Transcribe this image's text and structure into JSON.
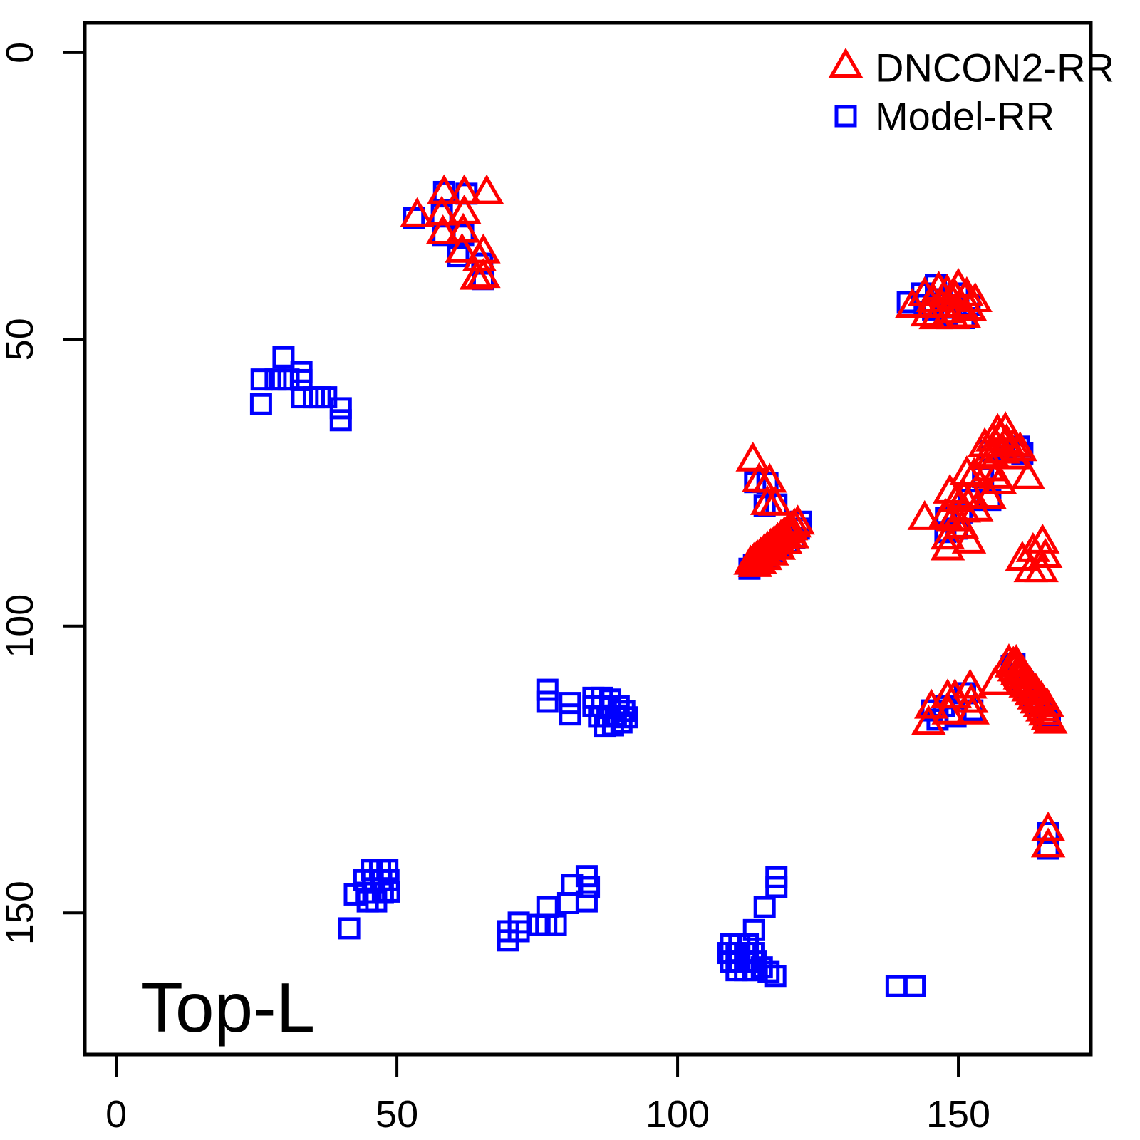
{
  "figure": {
    "background": "#ffffff",
    "frame_color": "#000000"
  },
  "legend": {
    "position": "topright",
    "items": [
      {
        "label": "DNCON2-RR",
        "marker": "triangle-icon",
        "color": "#ff0000"
      },
      {
        "label": "Model-RR",
        "marker": "square-icon",
        "color": "#0000ff"
      }
    ]
  },
  "chart_data": {
    "type": "scatter",
    "title": "",
    "xlabel": "",
    "ylabel": "",
    "annotation": "Top-L",
    "x_ticks": [
      "0",
      "50",
      "100",
      "150"
    ],
    "y_ticks": [
      "0",
      "50",
      "100",
      "150"
    ],
    "x_tick_values": [
      0,
      50,
      100,
      150
    ],
    "y_tick_values": [
      0,
      50,
      100,
      150
    ],
    "xlim": [
      -5.6,
      173.6
    ],
    "ylim": [
      -5.2,
      174.7
    ],
    "y_inverted": true,
    "grid": false,
    "legend_position": "topright",
    "series": [
      {
        "name": "DNCON2-RR",
        "marker": "triangle",
        "color": "#ff0000",
        "points": [
          [
            58.4,
            24.7
          ],
          [
            62.0,
            24.7
          ],
          [
            66.0,
            24.7
          ],
          [
            53.6,
            28.7
          ],
          [
            58.0,
            28.4
          ],
          [
            62.0,
            28.2
          ],
          [
            58.2,
            31.7
          ],
          [
            61.8,
            31.4
          ],
          [
            61.6,
            34.9
          ],
          [
            65.4,
            35.0
          ],
          [
            64.7,
            36.4
          ],
          [
            65.4,
            39.3
          ],
          [
            64.2,
            39.6
          ],
          [
            141.8,
            44.5
          ],
          [
            144.0,
            42.5
          ],
          [
            145.5,
            43.5
          ],
          [
            146.5,
            41.5
          ],
          [
            147.0,
            44.5
          ],
          [
            148.0,
            42.0
          ],
          [
            148.5,
            45.5
          ],
          [
            149.5,
            43.0
          ],
          [
            150.0,
            41.0
          ],
          [
            150.5,
            44.5
          ],
          [
            151.5,
            42.5
          ],
          [
            152.0,
            45.0
          ],
          [
            153.0,
            43.5
          ],
          [
            144.5,
            46.0
          ],
          [
            146.0,
            46.5
          ],
          [
            149.0,
            46.5
          ],
          [
            151.0,
            46.3
          ],
          [
            113.4,
            71.3
          ],
          [
            114.5,
            74.9
          ],
          [
            116.4,
            75.0
          ],
          [
            116.0,
            78.9
          ],
          [
            117.4,
            79.0
          ],
          [
            113.0,
            89.3
          ],
          [
            113.6,
            88.8
          ],
          [
            114.2,
            88.3
          ],
          [
            114.8,
            87.8
          ],
          [
            115.4,
            87.3
          ],
          [
            116.0,
            86.8
          ],
          [
            116.6,
            86.3
          ],
          [
            117.2,
            85.8
          ],
          [
            117.8,
            85.3
          ],
          [
            118.4,
            84.8
          ],
          [
            119.0,
            84.3
          ],
          [
            119.6,
            83.8
          ],
          [
            120.2,
            83.3
          ],
          [
            120.8,
            82.8
          ],
          [
            121.4,
            82.3
          ],
          [
            113.8,
            89.7
          ],
          [
            114.6,
            89.1
          ],
          [
            115.6,
            88.5
          ],
          [
            116.8,
            87.7
          ],
          [
            118.0,
            86.7
          ],
          [
            119.2,
            85.7
          ],
          [
            120.4,
            84.7
          ],
          [
            154.7,
            68.8
          ],
          [
            156.1,
            67.8
          ],
          [
            157.4,
            67.2
          ],
          [
            158.6,
            68.1
          ],
          [
            159.8,
            68.7
          ],
          [
            161.0,
            69.5
          ],
          [
            158.0,
            69.9
          ],
          [
            156.1,
            70.6
          ],
          [
            155.1,
            70.9
          ],
          [
            159.9,
            70.9
          ],
          [
            157.0,
            66.3
          ],
          [
            158.4,
            66.0
          ],
          [
            162.4,
            74.4
          ],
          [
            151.5,
            73.7
          ],
          [
            152.8,
            74.0
          ],
          [
            155.5,
            73.0
          ],
          [
            156.6,
            74.3
          ],
          [
            157.4,
            75.3
          ],
          [
            151.0,
            77.8
          ],
          [
            152.5,
            77.8
          ],
          [
            155.5,
            77.8
          ],
          [
            148.5,
            76.9
          ],
          [
            149.7,
            78.4
          ],
          [
            151.0,
            80.2
          ],
          [
            153.2,
            80.0
          ],
          [
            147.7,
            81.1
          ],
          [
            149.0,
            81.7
          ],
          [
            144.0,
            81.5
          ],
          [
            148.1,
            84.9
          ],
          [
            151.9,
            85.6
          ],
          [
            148.1,
            86.8
          ],
          [
            150.6,
            83.0
          ],
          [
            161.4,
            88.6
          ],
          [
            163.3,
            87.1
          ],
          [
            165.0,
            85.6
          ],
          [
            165.5,
            88.1
          ],
          [
            162.9,
            90.6
          ],
          [
            164.8,
            90.6
          ],
          [
            145.2,
            114.4
          ],
          [
            144.7,
            117.2
          ],
          [
            148.1,
            112.6
          ],
          [
            149.4,
            112.6
          ],
          [
            148.3,
            115.4
          ],
          [
            152.1,
            110.9
          ],
          [
            152.3,
            113.4
          ],
          [
            152.5,
            115.4
          ],
          [
            156.6,
            110.3
          ],
          [
            159.0,
            106.5
          ],
          [
            159.5,
            107.2
          ],
          [
            160.0,
            107.9
          ],
          [
            160.5,
            108.6
          ],
          [
            161.0,
            109.3
          ],
          [
            161.5,
            110.0
          ],
          [
            162.0,
            110.7
          ],
          [
            162.5,
            111.4
          ],
          [
            163.0,
            112.1
          ],
          [
            163.5,
            112.8
          ],
          [
            164.0,
            113.5
          ],
          [
            164.5,
            114.2
          ],
          [
            165.0,
            114.9
          ],
          [
            165.5,
            115.6
          ],
          [
            166.0,
            116.3
          ],
          [
            166.4,
            117.0
          ],
          [
            159.8,
            106.9
          ],
          [
            160.8,
            107.9
          ],
          [
            161.8,
            109.2
          ],
          [
            162.8,
            110.4
          ],
          [
            163.8,
            111.6
          ],
          [
            164.8,
            112.9
          ],
          [
            165.8,
            114.1
          ],
          [
            160.3,
            106.6
          ],
          [
            161.3,
            108.1
          ],
          [
            166.0,
            135.8
          ],
          [
            166.0,
            138.6
          ]
        ]
      },
      {
        "name": "Model-RR",
        "marker": "square",
        "color": "#0000ff",
        "points": [
          [
            58.4,
            24.3
          ],
          [
            62.4,
            24.6
          ],
          [
            53.0,
            28.9
          ],
          [
            58.0,
            28.3
          ],
          [
            58.2,
            31.8
          ],
          [
            61.8,
            31.8
          ],
          [
            60.9,
            35.5
          ],
          [
            65.2,
            36.8
          ],
          [
            65.4,
            39.5
          ],
          [
            141.0,
            43.5
          ],
          [
            146.0,
            40.5
          ],
          [
            143.5,
            42.0
          ],
          [
            144.0,
            44.0
          ],
          [
            147.0,
            43.0
          ],
          [
            150.0,
            42.0
          ],
          [
            152.0,
            44.0
          ],
          [
            148.0,
            45.8
          ],
          [
            151.0,
            46.3
          ],
          [
            145.5,
            44.8
          ],
          [
            149.5,
            44.5
          ],
          [
            29.8,
            53.1
          ],
          [
            25.9,
            57.0
          ],
          [
            28.4,
            57.0
          ],
          [
            29.6,
            57.0
          ],
          [
            30.7,
            57.0
          ],
          [
            33.0,
            55.7
          ],
          [
            33.0,
            57.1
          ],
          [
            33.1,
            60.1
          ],
          [
            35.2,
            60.1
          ],
          [
            36.3,
            60.1
          ],
          [
            37.4,
            60.1
          ],
          [
            25.8,
            61.3
          ],
          [
            40.0,
            62.0
          ],
          [
            40.0,
            64.1
          ],
          [
            113.8,
            74.9
          ],
          [
            116.0,
            75.0
          ],
          [
            115.5,
            79.0
          ],
          [
            117.6,
            78.8
          ],
          [
            112.8,
            90.0
          ],
          [
            113.6,
            89.4
          ],
          [
            114.8,
            88.6
          ],
          [
            116.0,
            87.8
          ],
          [
            117.2,
            87.0
          ],
          [
            118.4,
            86.2
          ],
          [
            119.6,
            85.4
          ],
          [
            120.8,
            84.6
          ],
          [
            121.6,
            83.0
          ],
          [
            122.0,
            81.8
          ],
          [
            155.7,
            69.5
          ],
          [
            158.0,
            69.1
          ],
          [
            160.8,
            68.7
          ],
          [
            161.4,
            69.9
          ],
          [
            154.4,
            74.0
          ],
          [
            151.9,
            78.0
          ],
          [
            155.7,
            78.0
          ],
          [
            147.8,
            81.2
          ],
          [
            149.7,
            83.0
          ],
          [
            147.7,
            83.6
          ],
          [
            150.6,
            80.2
          ],
          [
            76.8,
            111.1
          ],
          [
            76.8,
            113.2
          ],
          [
            80.8,
            113.4
          ],
          [
            80.8,
            115.4
          ],
          [
            85.0,
            112.5
          ],
          [
            86.5,
            112.5
          ],
          [
            88.0,
            112.8
          ],
          [
            85.0,
            114.0
          ],
          [
            86.5,
            114.0
          ],
          [
            88.0,
            114.2
          ],
          [
            89.5,
            114.0
          ],
          [
            86.0,
            115.8
          ],
          [
            87.5,
            115.8
          ],
          [
            89.0,
            115.6
          ],
          [
            90.5,
            114.8
          ],
          [
            87.0,
            117.5
          ],
          [
            88.5,
            117.3
          ],
          [
            90.0,
            116.8
          ],
          [
            91.0,
            115.9
          ],
          [
            145.3,
            114.7
          ],
          [
            147.4,
            114.0
          ],
          [
            151.2,
            111.7
          ],
          [
            152.5,
            114.7
          ],
          [
            149.5,
            115.8
          ],
          [
            146.3,
            116.3
          ],
          [
            159.5,
            107.0
          ],
          [
            160.5,
            108.4
          ],
          [
            161.5,
            109.8
          ],
          [
            162.5,
            111.2
          ],
          [
            163.5,
            112.6
          ],
          [
            164.5,
            114.0
          ],
          [
            165.5,
            115.4
          ],
          [
            166.3,
            116.8
          ],
          [
            160.0,
            106.6
          ],
          [
            162.0,
            110.4
          ],
          [
            164.0,
            113.2
          ],
          [
            166.0,
            116.0
          ],
          [
            166.0,
            136.0
          ],
          [
            166.0,
            138.8
          ],
          [
            45.5,
            142.5
          ],
          [
            47.0,
            142.5
          ],
          [
            48.3,
            142.5
          ],
          [
            44.2,
            144.3
          ],
          [
            45.7,
            144.3
          ],
          [
            47.2,
            144.3
          ],
          [
            48.5,
            144.3
          ],
          [
            42.5,
            146.8
          ],
          [
            44.5,
            146.5
          ],
          [
            46.0,
            146.5
          ],
          [
            47.5,
            146.5
          ],
          [
            48.6,
            146.3
          ],
          [
            44.8,
            148.0
          ],
          [
            46.3,
            148.0
          ],
          [
            41.5,
            152.7
          ],
          [
            83.8,
            143.6
          ],
          [
            81.2,
            145.1
          ],
          [
            84.2,
            145.5
          ],
          [
            80.5,
            148.3
          ],
          [
            83.8,
            148.0
          ],
          [
            76.8,
            149.0
          ],
          [
            76.6,
            152.1
          ],
          [
            75.4,
            152.1
          ],
          [
            78.3,
            152.1
          ],
          [
            71.7,
            151.7
          ],
          [
            71.7,
            153.2
          ],
          [
            69.8,
            153.2
          ],
          [
            69.8,
            154.8
          ],
          [
            117.6,
            143.8
          ],
          [
            117.6,
            145.5
          ],
          [
            115.5,
            149.0
          ],
          [
            113.6,
            153.0
          ],
          [
            109.5,
            155.5
          ],
          [
            111.0,
            155.5
          ],
          [
            112.5,
            155.5
          ],
          [
            109.0,
            157.0
          ],
          [
            110.5,
            157.0
          ],
          [
            112.0,
            157.0
          ],
          [
            113.5,
            157.0
          ],
          [
            109.5,
            158.5
          ],
          [
            111.0,
            158.5
          ],
          [
            112.5,
            158.5
          ],
          [
            114.0,
            158.5
          ],
          [
            110.5,
            160.0
          ],
          [
            112.0,
            160.0
          ],
          [
            113.5,
            160.0
          ],
          [
            115.0,
            159.5
          ],
          [
            116.2,
            160.3
          ],
          [
            117.4,
            161.0
          ],
          [
            139.0,
            162.8
          ],
          [
            142.2,
            162.8
          ]
        ]
      }
    ]
  }
}
